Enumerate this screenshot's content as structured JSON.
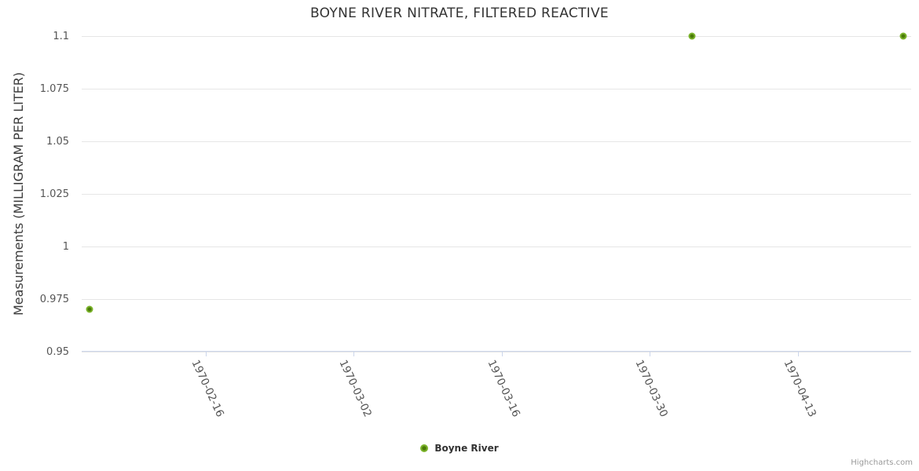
{
  "chart": {
    "title": "BOYNE RIVER NITRATE, FILTERED REACTIVE",
    "credits": "Highcharts.com"
  },
  "colors": {
    "series_fill": "#7cb42c",
    "series_core": "#4a7a08",
    "grid_line": "#e6e6e6",
    "axis_line": "#ccd6eb",
    "title_text": "#333333",
    "label_text": "#555555",
    "credits_text": "#999999"
  },
  "chart_data": {
    "type": "scatter",
    "title": "BOYNE RIVER NITRATE, FILTERED REACTIVE",
    "xlabel": "",
    "ylabel": "Measurements (MILLIGRAM PER LITER)",
    "legend_position": "bottom-center",
    "grid": "horizontal-only",
    "ylim": [
      0.95,
      1.1
    ],
    "yticks": [
      0.95,
      0.975,
      1,
      1.025,
      1.05,
      1.075,
      1.1
    ],
    "xlim": [
      "1970-02-04T07:00:00Z",
      "1970-04-23T17:30:00Z"
    ],
    "xticks": [
      "1970-02-16",
      "1970-03-02",
      "1970-03-16",
      "1970-03-30",
      "1970-04-13"
    ],
    "series": [
      {
        "name": "Boyne River",
        "color": "#7cb42c",
        "points": [
          {
            "date": "1970-02-05",
            "value": 0.97
          },
          {
            "date": "1970-04-03",
            "value": 1.1
          },
          {
            "date": "1970-04-23",
            "value": 1.1
          }
        ]
      }
    ]
  }
}
